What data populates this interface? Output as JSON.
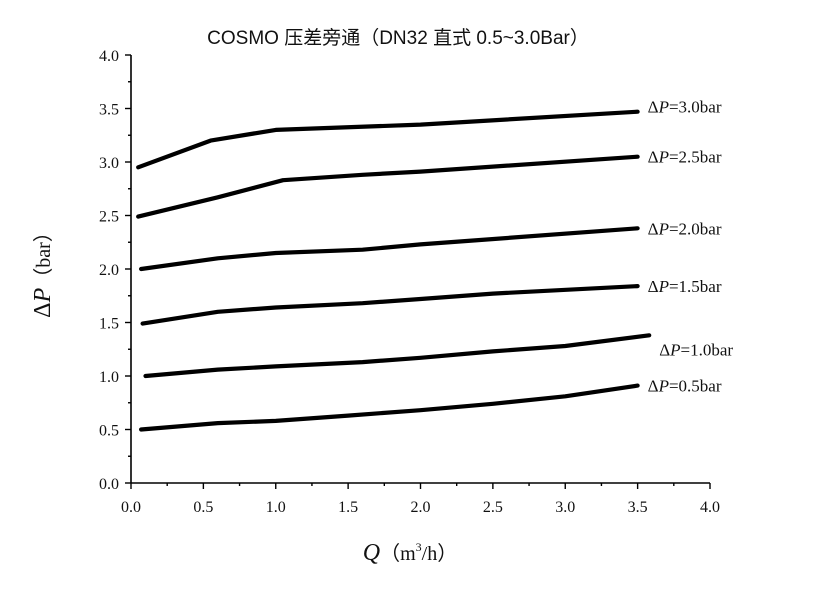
{
  "chart_data": {
    "type": "line",
    "title": "COSMO  压差旁通（DN32  直式  0.5~3.0Bar）",
    "xlabel": {
      "symbol": "Q",
      "unit_prefix": "（m",
      "unit_sup": "3",
      "unit_suffix": "/h）"
    },
    "ylabel": {
      "symbol": "ΔP",
      "unit": "（bar）"
    },
    "xlim": [
      0,
      4.0
    ],
    "ylim": [
      0,
      4.0
    ],
    "xticks": [
      "0.0",
      "0.5",
      "1.0",
      "1.5",
      "2.0",
      "2.5",
      "3.0",
      "3.5",
      "4.0"
    ],
    "yticks": [
      "0.0",
      "0.5",
      "1.0",
      "1.5",
      "2.0",
      "2.5",
      "3.0",
      "3.5",
      "4.0"
    ],
    "series": [
      {
        "name": "ΔP=3.0bar",
        "label_prefix": "Δ",
        "label_var": "P",
        "label_suffix": "=3.0bar",
        "x": [
          0.05,
          0.55,
          1.0,
          2.0,
          3.5
        ],
        "y": [
          2.95,
          3.2,
          3.3,
          3.35,
          3.47
        ]
      },
      {
        "name": "ΔP=2.5bar",
        "label_prefix": "Δ",
        "label_var": "P",
        "label_suffix": "=2.5bar",
        "x": [
          0.05,
          0.6,
          1.05,
          1.6,
          2.0,
          3.5
        ],
        "y": [
          2.49,
          2.67,
          2.83,
          2.88,
          2.91,
          3.05
        ]
      },
      {
        "name": "ΔP=2.0bar",
        "label_prefix": "Δ",
        "label_var": "P",
        "label_suffix": "=2.0bar",
        "x": [
          0.07,
          0.6,
          1.0,
          1.6,
          2.0,
          3.5
        ],
        "y": [
          2.0,
          2.1,
          2.15,
          2.18,
          2.23,
          2.38
        ]
      },
      {
        "name": "ΔP=1.5bar",
        "label_prefix": "Δ",
        "label_var": "P",
        "label_suffix": "=1.5bar",
        "x": [
          0.08,
          0.6,
          1.0,
          1.6,
          2.0,
          2.5,
          3.5
        ],
        "y": [
          1.49,
          1.6,
          1.64,
          1.68,
          1.72,
          1.77,
          1.84
        ]
      },
      {
        "name": "ΔP=1.0bar",
        "label_prefix": "Δ",
        "label_var": "P",
        "label_suffix": "=1.0bar",
        "x": [
          0.1,
          0.6,
          1.0,
          1.6,
          2.0,
          2.5,
          3.0,
          3.58
        ],
        "y": [
          1.0,
          1.06,
          1.09,
          1.13,
          1.17,
          1.23,
          1.28,
          1.38
        ]
      },
      {
        "name": "ΔP=0.5bar",
        "label_prefix": "Δ",
        "label_var": "P",
        "label_suffix": "=0.5bar",
        "x": [
          0.07,
          0.6,
          1.0,
          1.5,
          2.0,
          2.5,
          3.0,
          3.5
        ],
        "y": [
          0.5,
          0.56,
          0.58,
          0.63,
          0.68,
          0.74,
          0.81,
          0.91
        ]
      }
    ],
    "grid": false,
    "legend": "inline-right"
  }
}
